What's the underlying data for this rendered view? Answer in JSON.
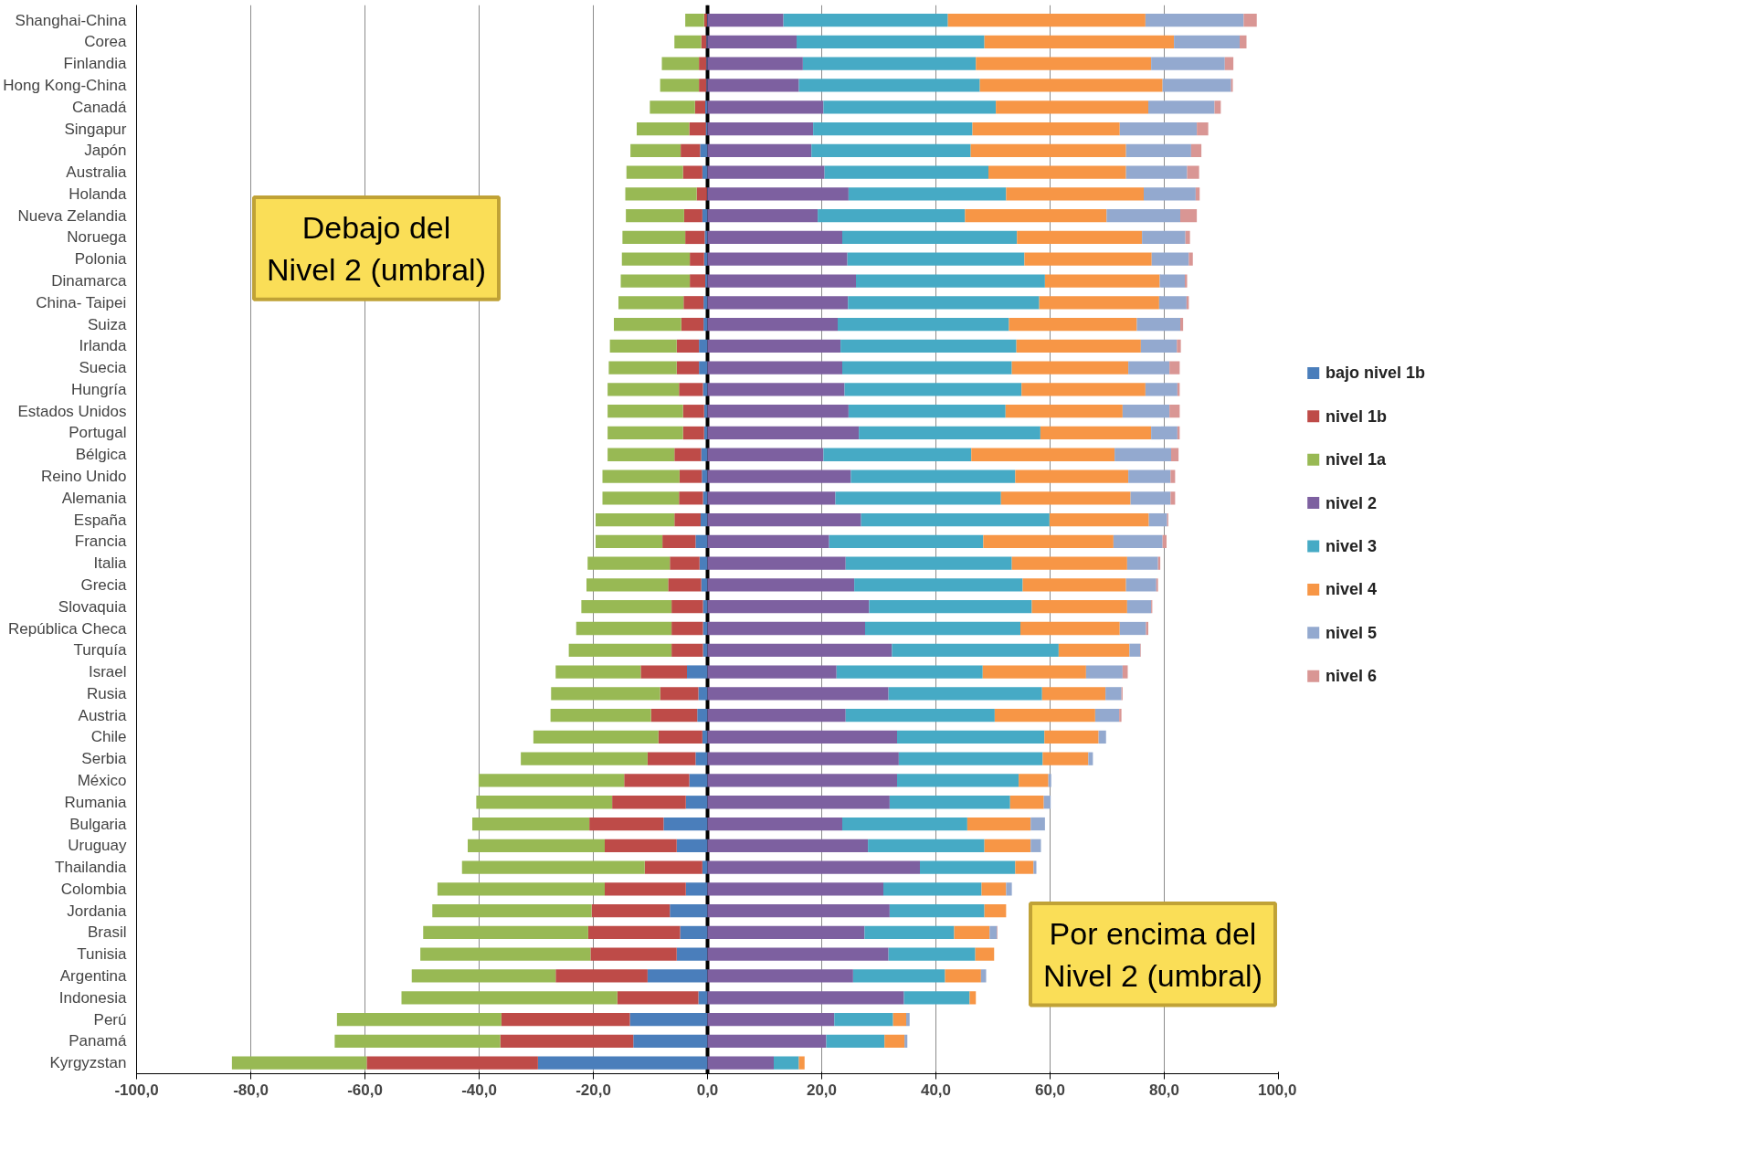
{
  "chart_data": {
    "type": "bar",
    "orientation": "horizontal",
    "stacked": true,
    "categories": [
      "Shanghai-China",
      "Corea",
      "Finlandia",
      "Hong Kong-China",
      "Canadá",
      "Singapur",
      "Japón",
      "Australia",
      "Holanda",
      "Nueva Zelandia",
      "Noruega",
      "Polonia",
      "Dinamarca",
      "China- Taipei",
      "Suiza",
      "Irlanda",
      "Suecia",
      "Hungría",
      "Estados Unidos",
      "Portugal",
      "Bélgica",
      "Reino Unido",
      "Alemania",
      "España",
      "Francia",
      "Italia",
      "Grecia",
      "Slovaquia",
      "República Checa",
      "Turquía",
      "Israel",
      "Rusia",
      "Austria",
      "Chile",
      "Serbia",
      "México",
      "Rumania",
      "Bulgaria",
      "Uruguay",
      "Thailandia",
      "Colombia",
      "Jordania",
      "Brasil",
      "Tunisia",
      "Argentina",
      "Indonesia",
      "Perú",
      "Panamá",
      "Kyrgyzstan"
    ],
    "series": [
      {
        "name": "bajo nivel 1b",
        "color": "#4a7ebb",
        "values": [
          -0.1,
          -0.2,
          -0.2,
          -0.2,
          -0.4,
          -0.3,
          -1.3,
          -0.9,
          -0.1,
          -0.9,
          -0.5,
          -0.6,
          -0.4,
          -0.7,
          -0.7,
          -1.5,
          -1.5,
          -0.8,
          -0.6,
          -0.6,
          -1.1,
          -1.0,
          -0.8,
          -1.2,
          -2.1,
          -1.4,
          -1.1,
          -0.8,
          -0.8,
          -0.8,
          -3.6,
          -1.6,
          -1.8,
          -0.9,
          -2.1,
          -3.2,
          -3.8,
          -7.7,
          -5.4,
          -0.9,
          -3.8,
          -6.6,
          -4.8,
          -5.4,
          -10.5,
          -1.6,
          -13.6,
          -13.0,
          -29.7
        ]
      },
      {
        "name": "nivel 1b",
        "color": "#be4b48",
        "values": [
          -0.5,
          -0.9,
          -1.3,
          -1.3,
          -1.8,
          -2.9,
          -3.4,
          -3.4,
          -1.8,
          -3.2,
          -3.4,
          -2.5,
          -2.7,
          -3.5,
          -3.9,
          -3.9,
          -3.9,
          -4.2,
          -3.7,
          -3.7,
          -4.7,
          -3.9,
          -4.2,
          -4.6,
          -5.8,
          -5.2,
          -5.8,
          -5.5,
          -5.5,
          -5.5,
          -8.1,
          -6.7,
          -8.1,
          -7.7,
          -8.4,
          -11.4,
          -12.9,
          -13.0,
          -12.6,
          -10.1,
          -14.2,
          -13.7,
          -16.1,
          -15.1,
          -16.1,
          -14.2,
          -22.5,
          -23.3,
          -30.0
        ]
      },
      {
        "name": "nivel 1a",
        "color": "#98b954",
        "values": [
          -3.3,
          -4.7,
          -6.5,
          -6.8,
          -7.9,
          -9.2,
          -8.8,
          -9.9,
          -12.5,
          -10.2,
          -11.0,
          -11.9,
          -12.1,
          -11.4,
          -11.8,
          -11.7,
          -11.9,
          -12.5,
          -13.2,
          -13.2,
          -11.7,
          -13.5,
          -13.4,
          -13.8,
          -11.7,
          -14.4,
          -14.3,
          -15.8,
          -16.7,
          -18.0,
          -14.9,
          -19.1,
          -17.6,
          -21.9,
          -22.2,
          -25.5,
          -23.8,
          -20.5,
          -24.0,
          -32.0,
          -29.3,
          -27.9,
          -28.9,
          -29.8,
          -25.2,
          -37.8,
          -28.8,
          -29.0,
          -23.6
        ]
      },
      {
        "name": "nivel 2",
        "color": "#7d60a0",
        "values": [
          13.3,
          15.6,
          16.7,
          16.0,
          20.3,
          18.5,
          18.2,
          20.5,
          24.7,
          19.3,
          23.6,
          24.5,
          26.0,
          24.6,
          22.8,
          23.3,
          23.6,
          24.0,
          24.7,
          26.5,
          20.3,
          25.1,
          22.4,
          26.9,
          21.3,
          24.2,
          25.7,
          28.3,
          27.6,
          32.3,
          22.6,
          31.7,
          24.2,
          33.2,
          33.5,
          33.2,
          31.9,
          23.6,
          28.1,
          37.2,
          30.8,
          31.9,
          27.5,
          31.7,
          25.5,
          34.4,
          22.2,
          20.8,
          11.6
        ]
      },
      {
        "name": "nivel 3",
        "color": "#46aac5",
        "values": [
          28.8,
          32.9,
          30.3,
          31.7,
          30.2,
          27.9,
          27.9,
          28.7,
          27.6,
          25.8,
          30.6,
          31.0,
          33.1,
          33.5,
          30.0,
          30.8,
          29.7,
          31.0,
          27.5,
          31.8,
          25.9,
          28.8,
          29.0,
          33.0,
          27.0,
          29.1,
          29.5,
          28.5,
          27.2,
          29.2,
          25.6,
          26.9,
          26.1,
          25.8,
          25.2,
          21.3,
          21.1,
          21.9,
          20.4,
          16.7,
          17.2,
          16.6,
          15.7,
          15.2,
          16.1,
          11.5,
          10.3,
          10.2,
          4.4
        ]
      },
      {
        "name": "nivel 4",
        "color": "#f79646",
        "values": [
          34.6,
          33.2,
          30.7,
          32.0,
          26.7,
          25.8,
          27.2,
          24.1,
          24.1,
          24.8,
          21.9,
          22.3,
          20.1,
          21.0,
          22.4,
          21.8,
          20.4,
          21.7,
          20.5,
          19.4,
          25.1,
          19.8,
          22.7,
          17.4,
          22.8,
          20.2,
          18.1,
          16.7,
          17.4,
          12.4,
          18.1,
          11.1,
          17.6,
          9.5,
          8.0,
          5.2,
          5.9,
          11.1,
          8.1,
          3.2,
          4.3,
          3.8,
          6.2,
          3.3,
          6.3,
          1.1,
          2.3,
          3.5,
          1.0
        ]
      },
      {
        "name": "nivel 5",
        "color": "#93a9cf",
        "values": [
          17.2,
          11.5,
          12.9,
          12.0,
          11.6,
          13.5,
          11.4,
          10.7,
          9.1,
          12.9,
          7.6,
          6.5,
          4.4,
          4.8,
          7.6,
          6.3,
          7.2,
          5.6,
          8.2,
          4.6,
          9.9,
          7.4,
          7.0,
          3.2,
          8.6,
          5.4,
          5.3,
          4.2,
          4.6,
          1.9,
          6.4,
          2.8,
          4.2,
          1.3,
          0.8,
          0.5,
          1.2,
          2.5,
          1.8,
          0.5,
          1.0,
          null,
          1.3,
          null,
          0.9,
          null,
          0.6,
          0.5,
          null
        ]
      },
      {
        "name": "nivel 6",
        "color": "#d99694",
        "values": [
          2.3,
          1.2,
          1.5,
          0.3,
          1.1,
          2.0,
          1.8,
          2.1,
          0.7,
          2.9,
          0.8,
          0.7,
          0.4,
          0.4,
          0.5,
          0.7,
          1.8,
          0.4,
          1.8,
          0.4,
          1.3,
          0.8,
          0.8,
          0.2,
          0.7,
          0.4,
          0.3,
          0.2,
          0.4,
          0.1,
          0.9,
          0.2,
          0.4,
          null,
          null,
          null,
          null,
          null,
          null,
          null,
          null,
          null,
          0.1,
          null,
          null,
          null,
          null,
          null,
          null
        ]
      }
    ],
    "xlim": [
      -100,
      100
    ],
    "xticks": [
      {
        "value": -100,
        "label": "-100,0"
      },
      {
        "value": -80,
        "label": "-80,0"
      },
      {
        "value": -60,
        "label": "-60,0"
      },
      {
        "value": -40,
        "label": "-40,0"
      },
      {
        "value": -20,
        "label": "-20,0"
      },
      {
        "value": 0,
        "label": "0,0"
      },
      {
        "value": 20,
        "label": "20,0"
      },
      {
        "value": 40,
        "label": "40,0"
      },
      {
        "value": 60,
        "label": "60,0"
      },
      {
        "value": 80,
        "label": "80,0"
      },
      {
        "value": 100,
        "label": "100,0"
      }
    ],
    "grid": "x",
    "legend": "right",
    "ref_lines": [
      {
        "axis": "x",
        "value": 0,
        "color": "#000000"
      }
    ],
    "annotations": [
      "Debajo del\nNivel 2 (umbral)",
      "Por encima del\nNivel 2 (umbral)"
    ]
  }
}
